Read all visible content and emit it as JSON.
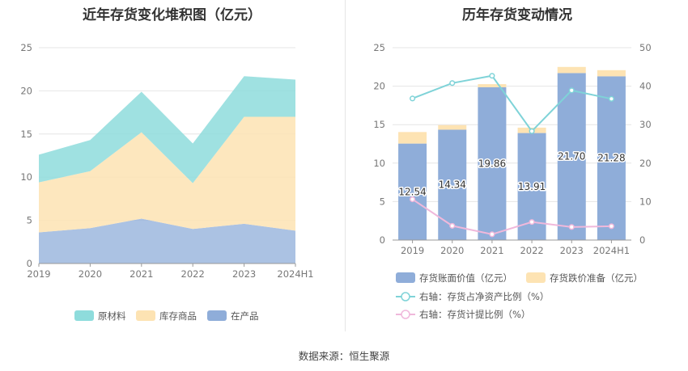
{
  "chart_data": [
    {
      "type": "area",
      "stacked": true,
      "title": "近年存货变化堆积图（亿元）",
      "categories": [
        "2019",
        "2020",
        "2021",
        "2022",
        "2023",
        "2024H1"
      ],
      "ylim": [
        0,
        25
      ],
      "yticks": [
        "0",
        "5",
        "10",
        "15",
        "20",
        "25"
      ],
      "grid": true,
      "legend_position": "bottom",
      "series": [
        {
          "name": "在产品",
          "color": "#8fadd9",
          "values": [
            3.6,
            4.1,
            5.2,
            4.0,
            4.6,
            3.8
          ]
        },
        {
          "name": "库存商品",
          "color": "#fde3b3",
          "values": [
            5.8,
            6.6,
            10.0,
            5.3,
            12.4,
            13.2
          ]
        },
        {
          "name": "原材料",
          "color": "#8edcdc",
          "values": [
            3.2,
            3.6,
            4.7,
            4.6,
            4.7,
            4.3
          ]
        }
      ],
      "legend_order": [
        "原材料",
        "库存商品",
        "在产品"
      ]
    },
    {
      "type": "bar",
      "title": "历年存货变动情况",
      "categories": [
        "2019",
        "2020",
        "2021",
        "2022",
        "2023",
        "2024H1"
      ],
      "ylim": [
        0,
        25
      ],
      "yticks": [
        "0",
        "5",
        "10",
        "15",
        "20",
        "25"
      ],
      "y2lim": [
        0,
        50
      ],
      "y2ticks": [
        "0",
        "10",
        "20",
        "30",
        "40",
        "50"
      ],
      "legend_position": "bottom",
      "bars": [
        {
          "name": "存货账面价值（亿元）",
          "color": "#8fadd9",
          "values": [
            12.54,
            14.34,
            19.86,
            13.91,
            21.7,
            21.28
          ],
          "labels": [
            "12.54",
            "14.34",
            "19.86",
            "13.91",
            "21.70",
            "21.28"
          ]
        },
        {
          "name": "存货跌价准备（亿元）",
          "color": "#fde3b3",
          "values": [
            1.5,
            0.6,
            0.4,
            0.7,
            0.8,
            0.8
          ]
        }
      ],
      "lines": [
        {
          "name": "右轴：存货占净资产比例（%）",
          "color": "#7fd3d8",
          "values": [
            36.8,
            40.8,
            42.7,
            28.3,
            38.9,
            36.7
          ]
        },
        {
          "name": "右轴：存货计提比例（%）",
          "color": "#f0b8db",
          "values": [
            10.6,
            3.7,
            1.5,
            4.7,
            3.4,
            3.6
          ]
        }
      ]
    }
  ],
  "source": "数据来源：恒生聚源"
}
